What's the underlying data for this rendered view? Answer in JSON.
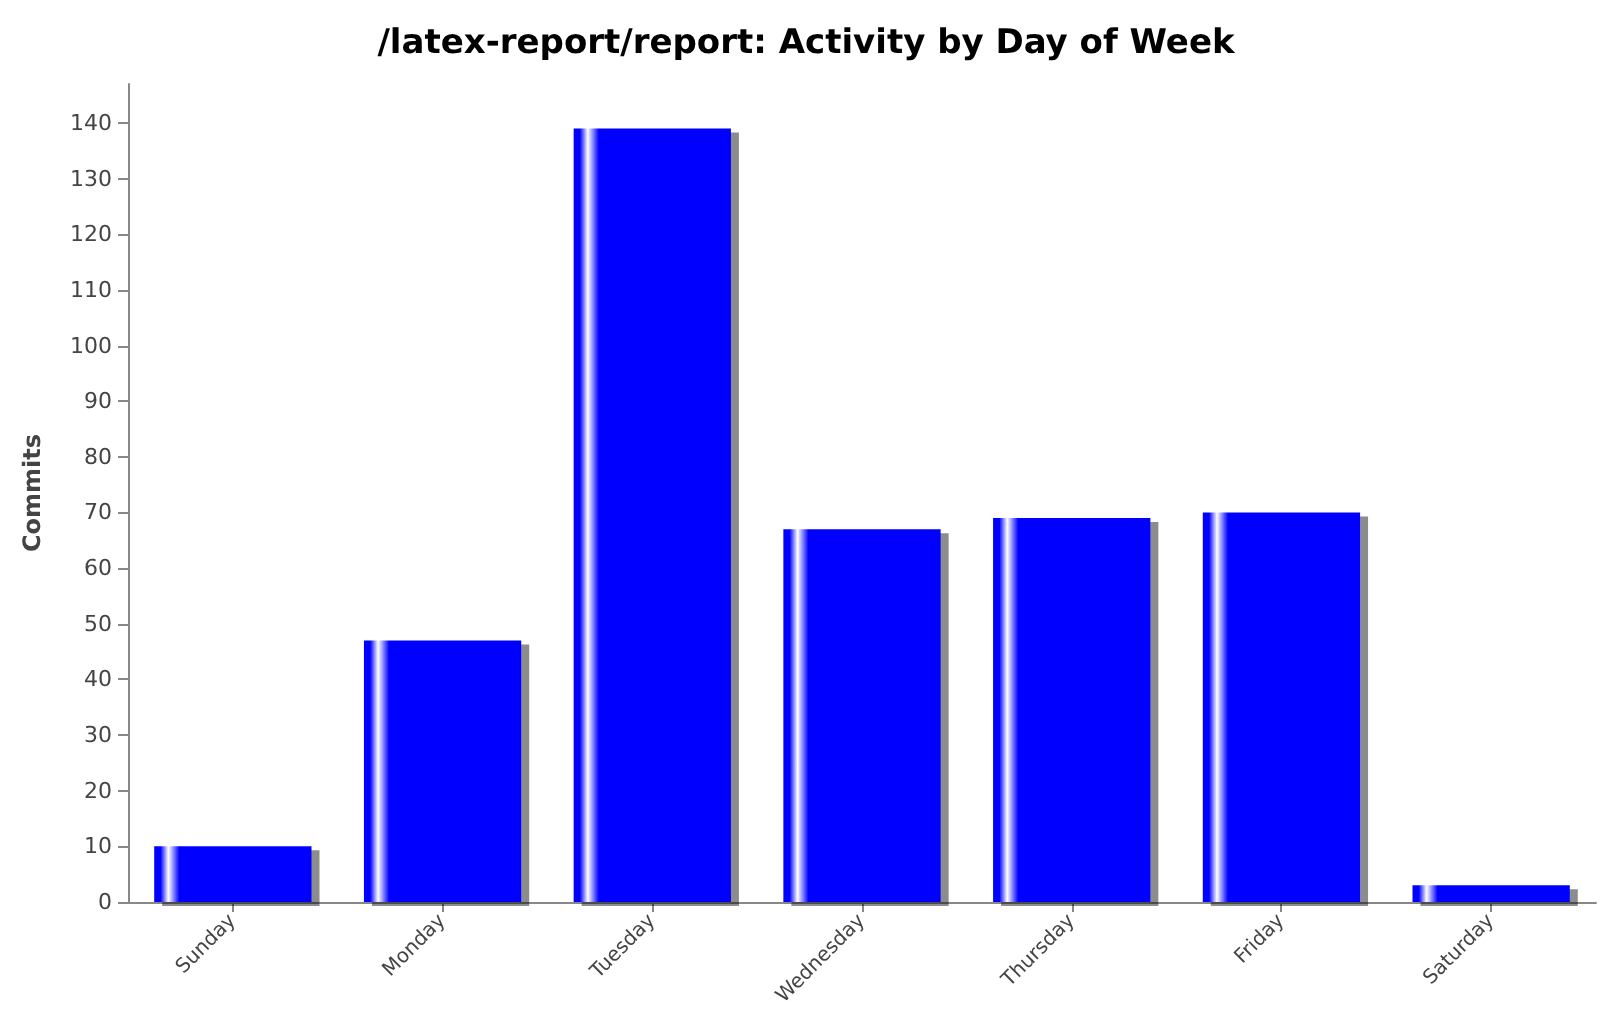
{
  "chart_data": {
    "type": "bar",
    "title": "/latex-report/report: Activity by Day of Week",
    "ylabel": "Commits",
    "categories": [
      "Sunday",
      "Monday",
      "Tuesday",
      "Wednesday",
      "Thursday",
      "Friday",
      "Saturday"
    ],
    "values": [
      10,
      47,
      139,
      67,
      69,
      70,
      3
    ],
    "color": "#0000ff",
    "ylim": [
      0,
      147
    ],
    "yticks": [
      0,
      10,
      20,
      30,
      40,
      50,
      60,
      70,
      80,
      90,
      100,
      110,
      120,
      130,
      140
    ],
    "grid": false
  }
}
